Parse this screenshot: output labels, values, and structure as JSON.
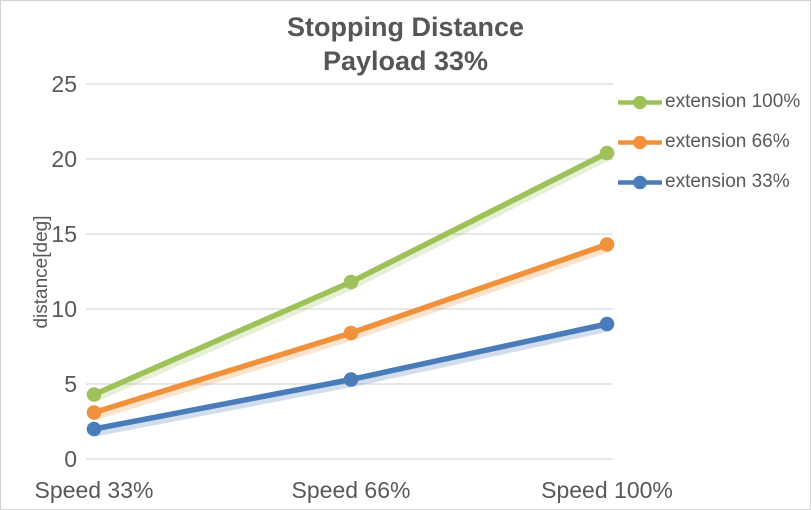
{
  "chart_data": {
    "type": "line",
    "title_lines": [
      "Stopping Distance",
      "Payload 33%"
    ],
    "ylabel": "distance[deg]",
    "xlabel": "",
    "categories": [
      "Speed 33%",
      "Speed 66%",
      "Speed 100%"
    ],
    "series": [
      {
        "name": "extension 100%",
        "color": "#9EC15A",
        "values": [
          4.3,
          11.8,
          20.4
        ]
      },
      {
        "name": "extension 66%",
        "color": "#F0913C",
        "values": [
          3.1,
          8.4,
          14.3
        ]
      },
      {
        "name": "extension 33%",
        "color": "#4A7CBA",
        "values": [
          2.0,
          5.3,
          9.0
        ]
      }
    ],
    "ylim": [
      0,
      25
    ],
    "ytick_step": 5,
    "yticks": [
      0,
      5,
      10,
      15,
      20,
      25
    ],
    "grid": true,
    "legend_position": "right",
    "colors": {
      "grid": "#D9D9D9",
      "text": "#595959",
      "title": "#565656"
    }
  }
}
